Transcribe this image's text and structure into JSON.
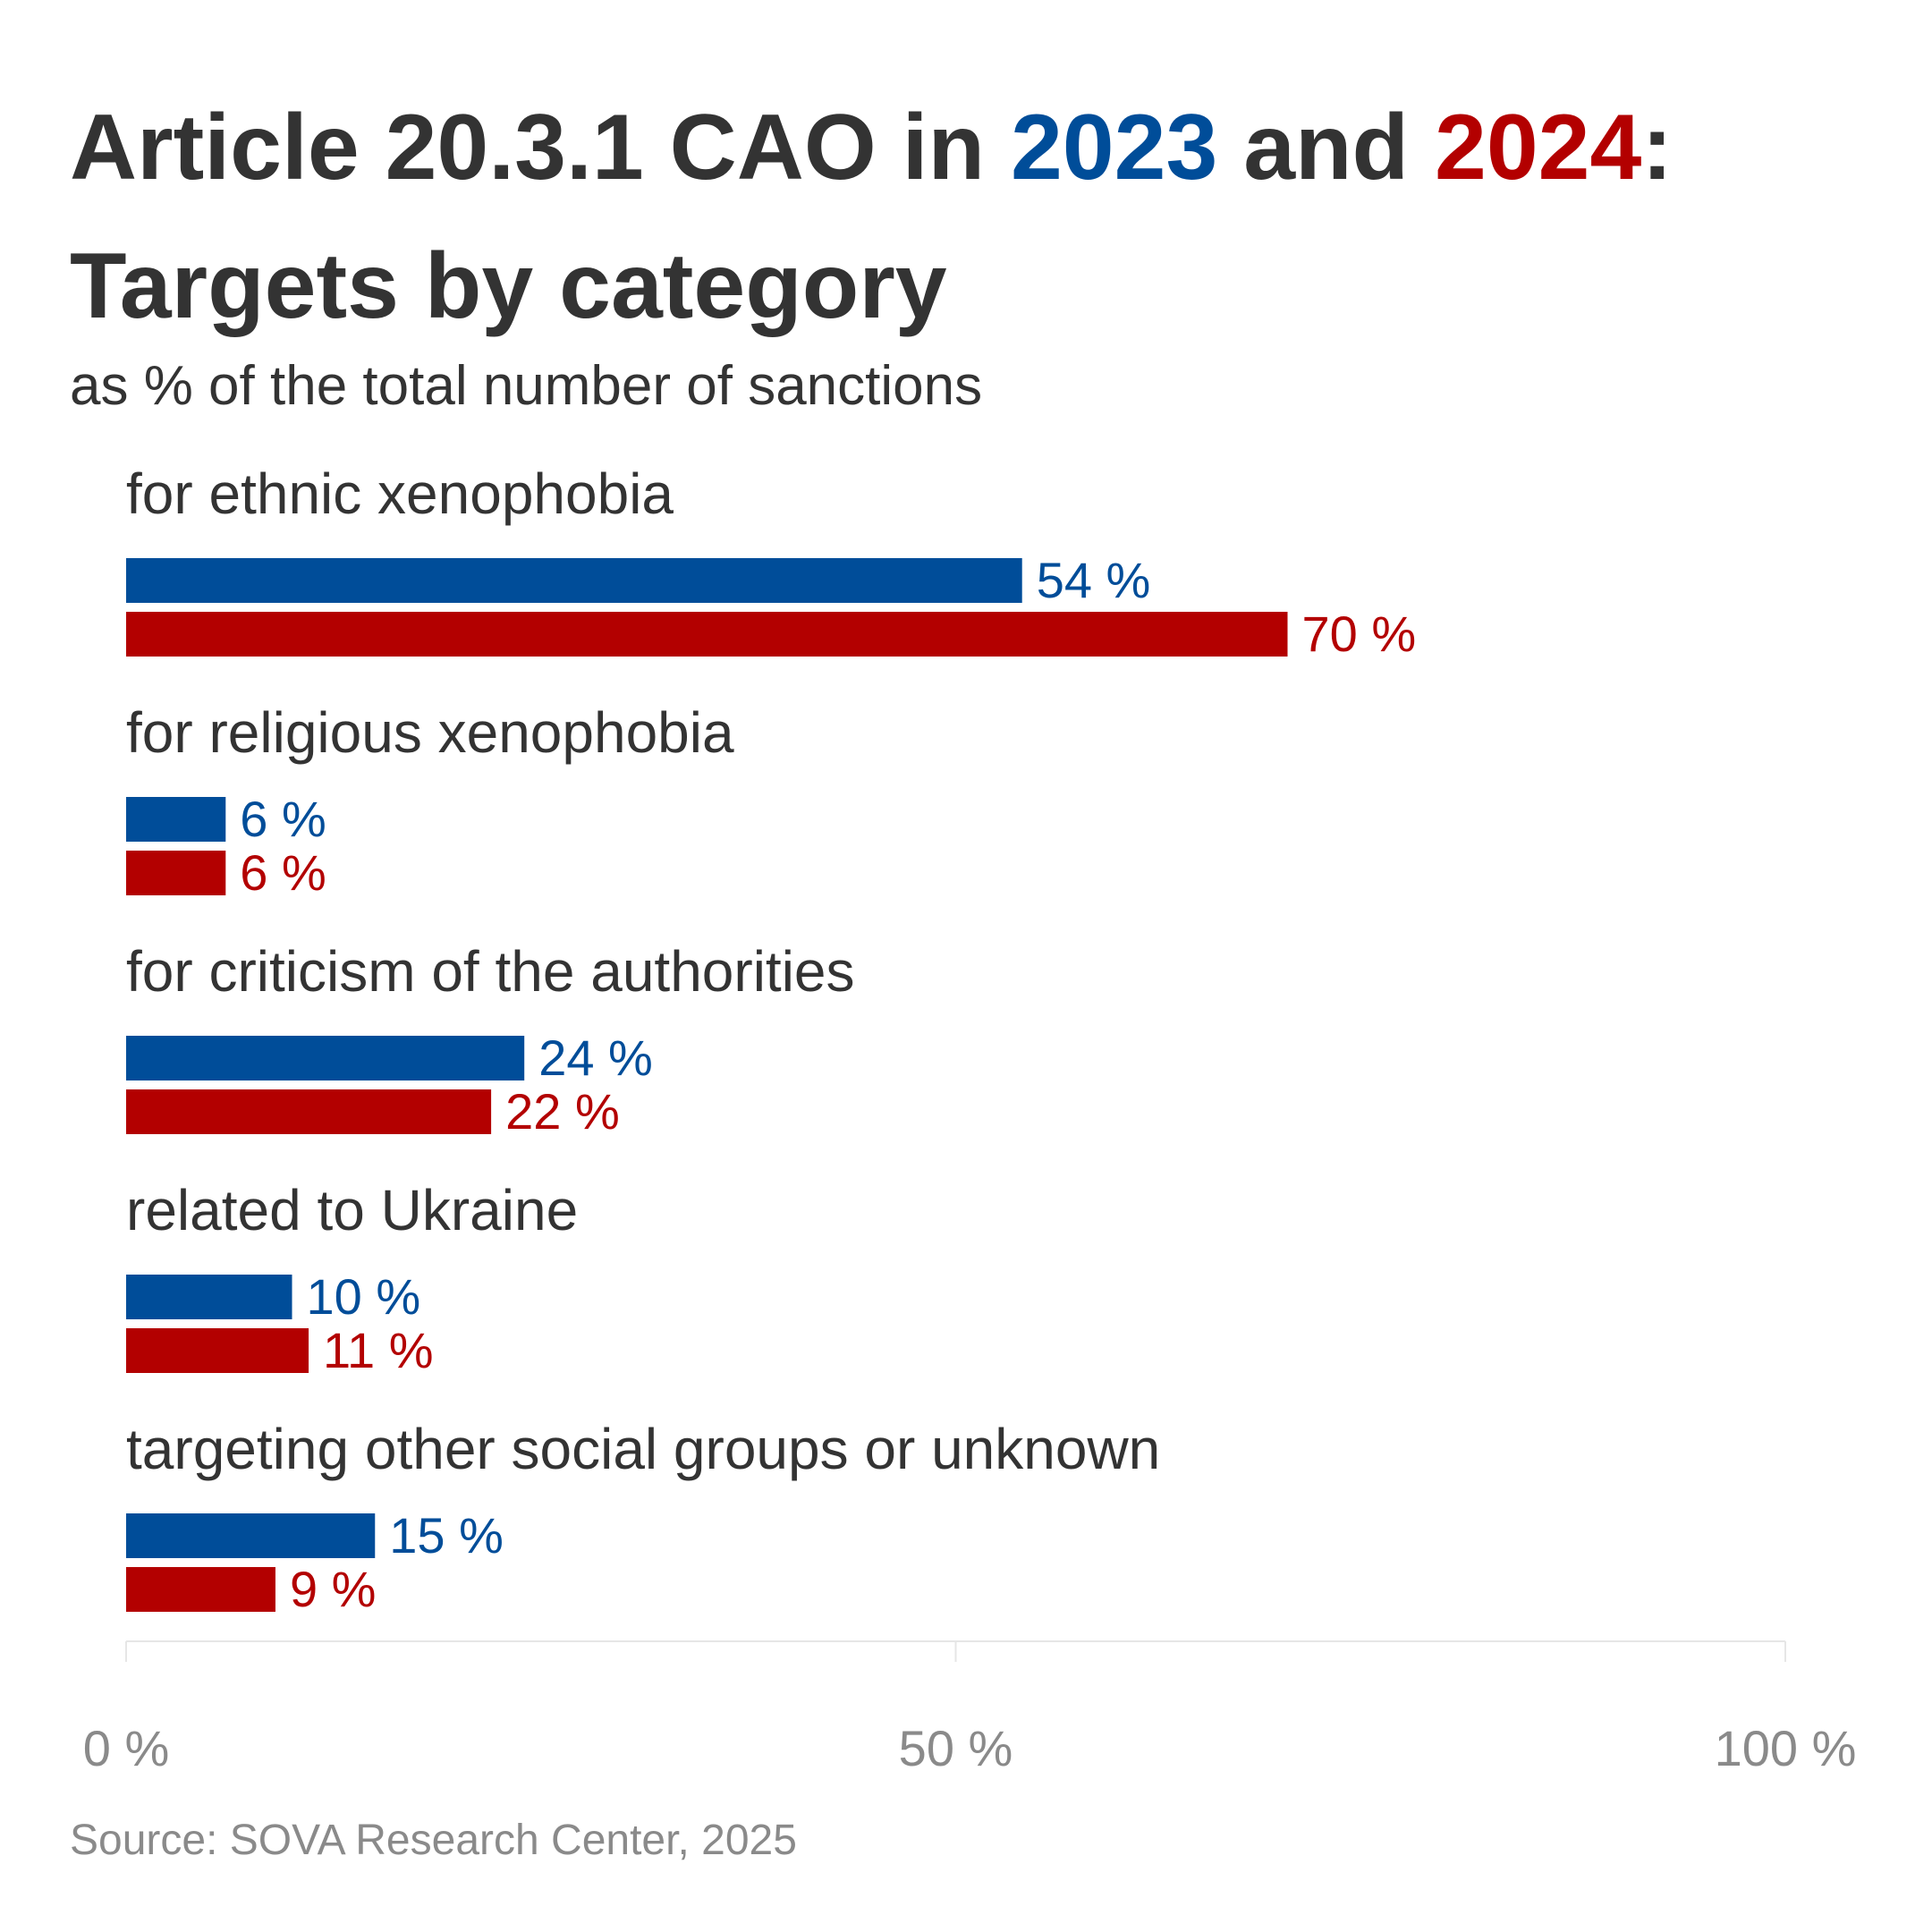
{
  "title": {
    "part1": "Article 20.3.1 CAO in ",
    "year_a": "2023",
    "part2": " and ",
    "year_b": "2024",
    "part3": ":",
    "line2": "Targets by category"
  },
  "subtitle": "as % of the total number of sanctions",
  "source": "Source: SOVA Research Center, 2025",
  "colors": {
    "series_2023": "#004d99",
    "series_2024": "#b30000",
    "text": "#333333",
    "axis_text": "#8a8a8a",
    "grid": "#e6e6e6"
  },
  "chart_data": {
    "type": "bar",
    "orientation": "horizontal",
    "categories": [
      "for ethnic xenophobia",
      "for religious xenophobia",
      "for criticism of the authorities",
      "related to Ukraine",
      "targeting other social groups or unknown"
    ],
    "series": [
      {
        "name": "2023",
        "color": "#004d99",
        "values": [
          54,
          6,
          24,
          10,
          15
        ],
        "labels": [
          "54 %",
          "6 %",
          "24 %",
          "10 %",
          "15 %"
        ]
      },
      {
        "name": "2024",
        "color": "#b30000",
        "values": [
          70,
          6,
          22,
          11,
          9
        ],
        "labels": [
          "70 %",
          "6 %",
          "22 %",
          "11 %",
          "9 %"
        ]
      }
    ],
    "xlim": [
      0,
      100
    ],
    "ticks": [
      0,
      50,
      100
    ],
    "tick_labels": [
      "0 %",
      "50 %",
      "100 %"
    ],
    "grid": true,
    "legend": "in title"
  }
}
